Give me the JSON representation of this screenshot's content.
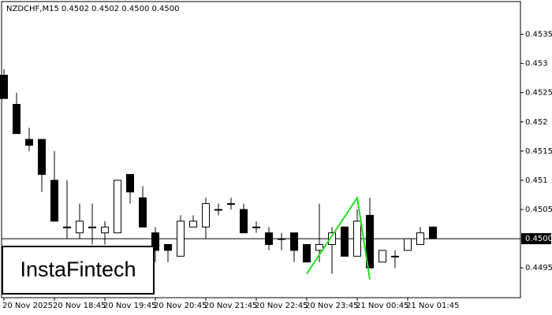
{
  "chart_data": {
    "type": "candlestick",
    "title": "NZDCHF,M15  0.4502 0.4502 0.4500 0.4500",
    "logo": "InstaFintech",
    "categories": [
      "20 Nov 2025",
      null,
      null,
      null,
      "20 Nov 18:45",
      null,
      null,
      null,
      "20 Nov 19:45",
      null,
      null,
      null,
      "20 Nov 20:45",
      null,
      null,
      null,
      "20 Nov 21:45",
      null,
      null,
      null,
      "20 Nov 22:45",
      null,
      null,
      null,
      "20 Nov 23:45",
      null,
      null,
      null,
      "21 Nov 00:45",
      null,
      null,
      null,
      "21 Nov 01:45",
      null,
      null
    ],
    "open": [
      0.4528,
      0.4523,
      0.4517,
      0.4517,
      0.451,
      0.4502,
      0.4501,
      0.4502,
      0.4501,
      0.4501,
      0.4511,
      0.4507,
      0.4501,
      0.4499,
      0.4497,
      0.4502,
      0.4502,
      0.4505,
      0.4506,
      0.4505,
      0.4502,
      0.4501,
      0.45,
      0.4501,
      0.4499,
      0.4498,
      0.4499,
      0.4502,
      0.4497,
      0.4504,
      0.4496,
      0.4497,
      0.4498,
      0.4499,
      0.4502
    ],
    "high": [
      0.4529,
      0.4525,
      0.4519,
      0.4517,
      0.4515,
      0.451,
      0.4506,
      0.4506,
      0.4503,
      0.451,
      0.4511,
      0.4509,
      0.4502,
      0.4499,
      0.4504,
      0.4504,
      0.4507,
      0.4506,
      0.4507,
      0.4506,
      0.4503,
      0.4502,
      0.4501,
      0.4501,
      0.4499,
      0.4506,
      0.4502,
      0.4502,
      0.4505,
      0.4507,
      0.4498,
      0.4498,
      0.45,
      0.4502,
      0.4502
    ],
    "low": [
      0.4524,
      0.4518,
      0.4515,
      0.4508,
      0.4503,
      0.45,
      0.45,
      0.4499,
      0.4499,
      0.4501,
      0.4506,
      0.4502,
      0.4496,
      0.4496,
      0.4497,
      0.4502,
      0.45,
      0.4504,
      0.4505,
      0.4501,
      0.4501,
      0.4498,
      0.4498,
      0.4496,
      0.4496,
      0.4496,
      0.4494,
      0.4497,
      0.4497,
      0.4495,
      0.4496,
      0.4495,
      0.4498,
      0.4499,
      0.45
    ],
    "close": [
      0.4524,
      0.4518,
      0.4516,
      0.4511,
      0.4503,
      0.4502,
      0.4503,
      0.4502,
      0.4502,
      0.451,
      0.4508,
      0.4502,
      0.4498,
      0.4498,
      0.4503,
      0.4503,
      0.4506,
      0.4505,
      0.4506,
      0.4501,
      0.4502,
      0.4499,
      0.45,
      0.4498,
      0.4496,
      0.4499,
      0.4501,
      0.4497,
      0.4503,
      0.4495,
      0.4498,
      0.4497,
      0.45,
      0.4501,
      0.45
    ],
    "pattern": {
      "color": "#22dd22",
      "x": [
        24,
        28,
        29
      ],
      "values": [
        0.4494,
        0.4507,
        0.4493
      ]
    },
    "price_line": {
      "value": 0.45,
      "label": "0.4500"
    },
    "ylim": [
      0.44899,
      0.45406
    ],
    "yticks": [
      0.4495,
      0.4505,
      0.451,
      0.4515,
      0.452,
      0.4525,
      0.453,
      0.4535
    ]
  }
}
